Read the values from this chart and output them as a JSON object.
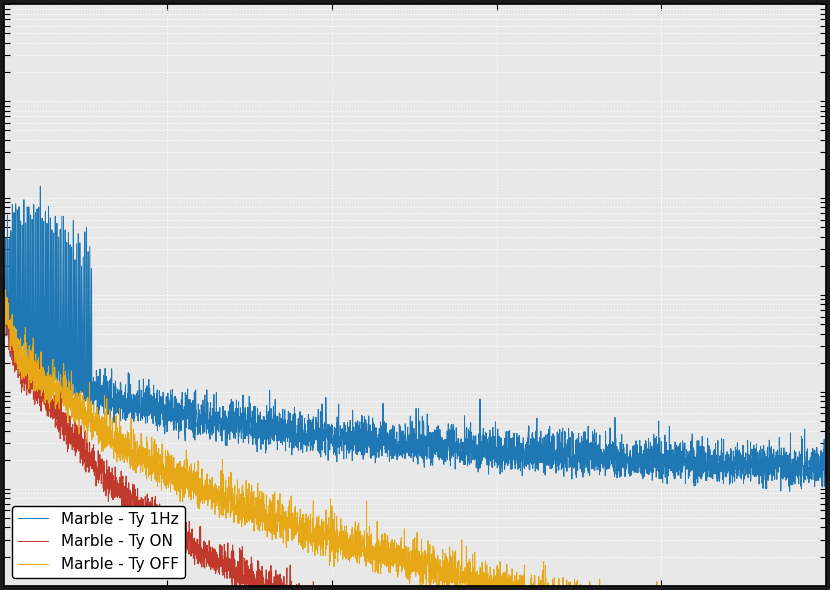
{
  "title": "",
  "xlabel": "",
  "ylabel": "",
  "background_color": "#f0f0f0",
  "plot_bg_color": "#e8e8e8",
  "grid_color": "#ffffff",
  "colors": {
    "blue": "#1f77b4",
    "red": "#c0392b",
    "orange": "#e6a817"
  },
  "legend": [
    "Marble - Ty 1Hz",
    "Marble - Ty ON",
    "Marble - Ty OFF"
  ],
  "legend_loc": "lower left",
  "linewidth": 0.7,
  "n_points": 5000,
  "freq_start": 1,
  "freq_end": 500,
  "ylim": [
    0.0001,
    100
  ],
  "xlim": [
    1,
    500
  ]
}
